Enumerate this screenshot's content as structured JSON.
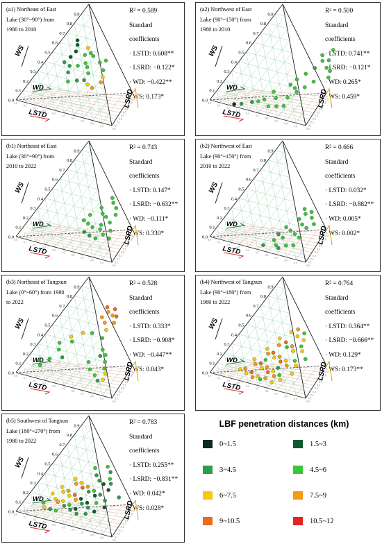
{
  "chart_data": [
    {
      "type": "scatter",
      "panel": "a1",
      "title": "(a1) Northeast of East\nLake (30°~90°) from\n1980 to 2010",
      "axes": [
        "LSTD",
        "LSRD",
        "WD",
        "WS"
      ],
      "tick_labels": [
        "0.0",
        "0.1",
        "0.2",
        "0.3",
        "0.4",
        "0.5",
        "0.6",
        "0.7",
        "0.8",
        "0.9"
      ],
      "r2": "R² = 0.589",
      "coef_heading": "Standard\ncoefficients",
      "coefficients": [
        "· LSTD: 0.608**",
        "· LSRD: −0.122*",
        "· WD: −0.422**",
        "· WS: 0.173*"
      ],
      "points": [
        [
          0.14,
          0.66,
          1
        ],
        [
          0.17,
          0.62,
          1
        ],
        [
          0.2,
          0.56,
          1
        ],
        [
          0.19,
          0.5,
          1
        ],
        [
          0.17,
          0.44,
          2
        ],
        [
          0.24,
          0.42,
          2
        ],
        [
          0.28,
          0.62,
          4
        ],
        [
          0.3,
          0.55,
          3
        ],
        [
          0.34,
          0.58,
          3
        ],
        [
          0.38,
          0.56,
          3
        ],
        [
          0.36,
          0.48,
          3
        ],
        [
          0.31,
          0.44,
          3
        ],
        [
          0.27,
          0.36,
          2
        ],
        [
          0.4,
          0.45,
          3
        ],
        [
          0.45,
          0.4,
          3
        ],
        [
          0.48,
          0.52,
          3
        ],
        [
          0.52,
          0.55,
          3
        ],
        [
          0.56,
          0.46,
          3
        ],
        [
          0.6,
          0.4,
          4
        ],
        [
          0.62,
          0.35,
          5
        ],
        [
          0.46,
          0.33,
          2
        ],
        [
          0.4,
          0.31,
          2
        ],
        [
          0.33,
          0.28,
          3
        ],
        [
          0.52,
          0.3,
          4
        ],
        [
          0.58,
          0.28,
          5
        ]
      ]
    },
    {
      "type": "scatter",
      "panel": "a2",
      "title": "(a2) Northwest of East\nLake (90°~150°) from\n1980 to 2010",
      "axes": [
        "LSTD",
        "LSRD",
        "WD",
        "WS"
      ],
      "tick_labels": [
        "0.0",
        "0.1",
        "0.2",
        "0.3",
        "0.4",
        "0.5",
        "0.6",
        "0.7",
        "0.8",
        "0.9"
      ],
      "r2": "R² = 0.500",
      "coef_heading": "Standard\ncoefficients",
      "coefficients": [
        "· LSTD: 0.741**",
        "· LSRD: −0.121*",
        "· WD: 0.265*",
        "· WS: 0.459*"
      ],
      "points": [
        [
          0.74,
          0.72,
          3
        ],
        [
          0.68,
          0.65,
          3
        ],
        [
          0.72,
          0.6,
          3
        ],
        [
          0.77,
          0.62,
          3
        ],
        [
          0.8,
          0.55,
          3
        ],
        [
          0.7,
          0.52,
          2
        ],
        [
          0.85,
          0.53,
          3
        ],
        [
          0.88,
          0.47,
          3
        ],
        [
          0.66,
          0.45,
          3
        ],
        [
          0.62,
          0.38,
          3
        ],
        [
          0.6,
          0.32,
          3
        ],
        [
          0.66,
          0.3,
          3
        ],
        [
          0.7,
          0.27,
          3
        ],
        [
          0.74,
          0.33,
          3
        ],
        [
          0.5,
          0.22,
          3
        ],
        [
          0.56,
          0.17,
          3
        ],
        [
          0.47,
          0.13,
          3
        ],
        [
          0.43,
          0.1,
          3
        ],
        [
          0.38,
          0.08,
          2
        ],
        [
          0.55,
          0.08,
          3
        ],
        [
          0.62,
          0.1,
          3
        ],
        [
          0.68,
          0.12,
          3
        ],
        [
          0.3,
          0.04,
          2
        ],
        [
          0.24,
          0.02,
          0
        ],
        [
          0.66,
          0.2,
          3
        ],
        [
          0.78,
          0.4,
          3
        ]
      ]
    },
    {
      "type": "scatter",
      "panel": "b1",
      "title": "(b1) Northeast of East\nLake (30°~90°) from\n2010 to 2022",
      "axes": [
        "LSTD",
        "LSRD",
        "WD",
        "WS"
      ],
      "tick_labels": [
        "0.0",
        "0.1",
        "0.2",
        "0.3",
        "0.4",
        "0.5",
        "0.6",
        "0.7",
        "0.8",
        "0.9"
      ],
      "r2": "R² = 0.743",
      "coef_heading": "Standard\ncoefficients",
      "coefficients": [
        "· LSTD: 0.147*",
        "· LSRD: −0.632**",
        "· WD: −0.111*",
        "· WS: 0.330*"
      ],
      "points": [
        [
          0.58,
          0.56,
          3
        ],
        [
          0.62,
          0.52,
          3
        ],
        [
          0.68,
          0.48,
          3
        ],
        [
          0.55,
          0.45,
          3
        ],
        [
          0.6,
          0.4,
          3
        ],
        [
          0.65,
          0.38,
          3
        ],
        [
          0.72,
          0.34,
          3
        ],
        [
          0.5,
          0.36,
          3
        ],
        [
          0.48,
          0.3,
          3
        ],
        [
          0.54,
          0.28,
          3
        ],
        [
          0.6,
          0.26,
          3
        ],
        [
          0.68,
          0.26,
          3
        ],
        [
          0.74,
          0.22,
          3
        ],
        [
          0.78,
          0.27,
          3
        ],
        [
          0.56,
          0.2,
          2
        ],
        [
          0.63,
          0.18,
          2
        ],
        [
          0.7,
          0.17,
          3
        ],
        [
          0.82,
          0.2,
          3
        ],
        [
          0.72,
          0.42,
          3
        ],
        [
          0.66,
          0.3,
          3
        ]
      ]
    },
    {
      "type": "scatter",
      "panel": "b2",
      "title": "(b2) Northwest of East\nLake (90°~150°) from\n2010 to 2022",
      "axes": [
        "LSTD",
        "LSRD",
        "WD",
        "WS"
      ],
      "tick_labels": [
        "0.0",
        "0.1",
        "0.2",
        "0.3",
        "0.4",
        "0.5",
        "0.6",
        "0.7",
        "0.8",
        "0.9"
      ],
      "r2": "R² = 0.666",
      "coef_heading": "Standard\ncoefficients",
      "coefficients": [
        "· LSTD: 0.032*",
        "· LSRD: −0.882**",
        "· WD: 0.005*",
        "· WS: 0.002*"
      ],
      "points": [
        [
          0.64,
          0.46,
          3
        ],
        [
          0.68,
          0.42,
          3
        ],
        [
          0.72,
          0.45,
          3
        ],
        [
          0.76,
          0.4,
          3
        ],
        [
          0.66,
          0.36,
          3
        ],
        [
          0.72,
          0.32,
          3
        ],
        [
          0.78,
          0.3,
          3
        ],
        [
          0.82,
          0.35,
          3
        ],
        [
          0.6,
          0.26,
          3
        ],
        [
          0.66,
          0.24,
          3
        ],
        [
          0.72,
          0.22,
          3
        ],
        [
          0.78,
          0.2,
          3
        ],
        [
          0.58,
          0.18,
          2
        ],
        [
          0.64,
          0.16,
          3
        ],
        [
          0.58,
          0.12,
          3
        ],
        [
          0.63,
          0.08,
          3
        ],
        [
          0.67,
          0.06,
          2
        ],
        [
          0.72,
          0.1,
          3
        ],
        [
          0.52,
          0.05,
          2
        ],
        [
          0.78,
          0.12,
          3
        ]
      ]
    },
    {
      "type": "scatter",
      "panel": "b3",
      "title": "(b3) Northeast of Tangxun\nLake (0°~60°) from 1980\nto 2022",
      "axes": [
        "LSTD",
        "LSRD",
        "WD",
        "WS"
      ],
      "tick_labels": [
        "0.0",
        "0.1",
        "0.2",
        "0.3",
        "0.4",
        "0.5",
        "0.6",
        "0.7",
        "0.8",
        "0.9"
      ],
      "r2": "R² = 0.528",
      "coef_heading": "Standard\ncoefficients",
      "coefficients": [
        "· LSTD: 0.333*",
        "· LSRD: −0.908*",
        "· WD: −0.447**",
        "· WS: 0.043*"
      ],
      "points": [
        [
          0.36,
          0.78,
          6
        ],
        [
          0.4,
          0.74,
          5
        ],
        [
          0.44,
          0.78,
          6
        ],
        [
          0.46,
          0.72,
          5
        ],
        [
          0.5,
          0.72,
          6
        ],
        [
          0.38,
          0.68,
          5
        ],
        [
          0.44,
          0.64,
          5
        ],
        [
          0.52,
          0.66,
          5
        ],
        [
          0.5,
          0.58,
          4
        ],
        [
          0.32,
          0.5,
          4
        ],
        [
          0.4,
          0.52,
          3
        ],
        [
          0.24,
          0.44,
          4
        ],
        [
          0.28,
          0.4,
          3
        ],
        [
          0.18,
          0.36,
          3
        ],
        [
          0.22,
          0.3,
          3
        ],
        [
          0.2,
          0.2,
          3
        ],
        [
          0.12,
          0.16,
          2
        ],
        [
          0.16,
          0.12,
          3
        ],
        [
          0.6,
          0.4,
          3
        ],
        [
          0.66,
          0.36,
          3
        ],
        [
          0.7,
          0.3,
          3
        ],
        [
          0.74,
          0.24,
          3
        ],
        [
          0.78,
          0.2,
          4
        ],
        [
          0.8,
          0.14,
          4
        ],
        [
          0.56,
          0.26,
          3
        ],
        [
          0.62,
          0.2,
          3
        ],
        [
          0.7,
          0.16,
          3
        ],
        [
          0.76,
          0.12,
          2
        ],
        [
          0.3,
          0.24,
          2
        ],
        [
          0.52,
          0.5,
          3
        ],
        [
          0.62,
          0.34,
          2
        ]
      ]
    },
    {
      "type": "scatter",
      "panel": "b4",
      "title": "(b4) Northwest of Tangxun\nLake (90°~180°) from\n1980 to 2022",
      "axes": [
        "LSTD",
        "LSRD",
        "WD",
        "WS"
      ],
      "tick_labels": [
        "0.0",
        "0.1",
        "0.2",
        "0.3",
        "0.4",
        "0.5",
        "0.6",
        "0.7",
        "0.8",
        "0.9"
      ],
      "r2": "R² = 0.764",
      "coef_heading": "Standard\ncoefficients",
      "coefficients": [
        "· LSTD: 0.364**",
        "· LSRD: −0.666**",
        "· WD: 0.129*",
        "· WS: 0.173**"
      ],
      "points": [
        [
          0.44,
          0.54,
          4
        ],
        [
          0.48,
          0.58,
          5
        ],
        [
          0.52,
          0.52,
          4
        ],
        [
          0.56,
          0.56,
          3
        ],
        [
          0.6,
          0.5,
          4
        ],
        [
          0.38,
          0.46,
          4
        ],
        [
          0.42,
          0.4,
          5
        ],
        [
          0.46,
          0.44,
          6
        ],
        [
          0.5,
          0.4,
          3
        ],
        [
          0.54,
          0.42,
          5
        ],
        [
          0.58,
          0.38,
          4
        ],
        [
          0.62,
          0.44,
          3
        ],
        [
          0.66,
          0.4,
          4
        ],
        [
          0.34,
          0.34,
          4
        ],
        [
          0.38,
          0.3,
          5
        ],
        [
          0.42,
          0.32,
          6
        ],
        [
          0.46,
          0.28,
          4
        ],
        [
          0.5,
          0.3,
          5
        ],
        [
          0.54,
          0.26,
          6
        ],
        [
          0.58,
          0.28,
          4
        ],
        [
          0.62,
          0.24,
          5
        ],
        [
          0.66,
          0.3,
          3
        ],
        [
          0.7,
          0.26,
          4
        ],
        [
          0.3,
          0.22,
          4
        ],
        [
          0.34,
          0.18,
          5
        ],
        [
          0.38,
          0.2,
          6
        ],
        [
          0.42,
          0.16,
          4
        ],
        [
          0.46,
          0.18,
          5
        ],
        [
          0.5,
          0.14,
          6
        ],
        [
          0.54,
          0.16,
          4
        ],
        [
          0.58,
          0.12,
          5
        ],
        [
          0.62,
          0.14,
          3
        ],
        [
          0.66,
          0.1,
          4
        ],
        [
          0.28,
          0.12,
          5
        ],
        [
          0.32,
          0.08,
          4
        ],
        [
          0.36,
          0.1,
          6
        ],
        [
          0.4,
          0.06,
          5
        ],
        [
          0.44,
          0.08,
          4
        ],
        [
          0.48,
          0.06,
          3
        ],
        [
          0.52,
          0.08,
          5
        ],
        [
          0.72,
          0.18,
          4
        ],
        [
          0.74,
          0.34,
          3
        ],
        [
          0.56,
          0.2,
          2
        ],
        [
          0.4,
          0.24,
          3
        ],
        [
          0.24,
          0.1,
          4
        ],
        [
          0.6,
          0.06,
          4
        ]
      ]
    },
    {
      "type": "scatter",
      "panel": "b5",
      "title": "(b5) Southwest of Tangxun\nLake (180°~270°) from\n1980 to 2022",
      "axes": [
        "LSTD",
        "LSRD",
        "WD",
        "WS"
      ],
      "tick_labels": [
        "0.0",
        "0.1",
        "0.2",
        "0.3",
        "0.4",
        "0.5",
        "0.6",
        "0.7",
        "0.8",
        "0.9"
      ],
      "r2": "R² = 0.783",
      "coef_heading": "Standard\ncoefficients",
      "coefficients": [
        "· LSTD: 0.255**",
        "· LSRD: −0.831**",
        "· WD: 0.042*",
        "· WS: 0.028*"
      ],
      "points": [
        [
          0.4,
          0.56,
          3
        ],
        [
          0.5,
          0.6,
          3
        ],
        [
          0.56,
          0.56,
          2
        ],
        [
          0.6,
          0.5,
          3
        ],
        [
          0.46,
          0.5,
          2
        ],
        [
          0.52,
          0.46,
          2
        ],
        [
          0.58,
          0.44,
          1
        ],
        [
          0.64,
          0.46,
          2
        ],
        [
          0.66,
          0.4,
          1
        ],
        [
          0.3,
          0.42,
          4
        ],
        [
          0.34,
          0.38,
          5
        ],
        [
          0.38,
          0.4,
          4
        ],
        [
          0.42,
          0.36,
          6
        ],
        [
          0.46,
          0.38,
          5
        ],
        [
          0.5,
          0.34,
          2
        ],
        [
          0.54,
          0.36,
          3
        ],
        [
          0.58,
          0.32,
          1
        ],
        [
          0.62,
          0.34,
          2
        ],
        [
          0.24,
          0.32,
          4
        ],
        [
          0.28,
          0.28,
          4
        ],
        [
          0.32,
          0.3,
          5
        ],
        [
          0.36,
          0.26,
          4
        ],
        [
          0.4,
          0.28,
          6
        ],
        [
          0.44,
          0.24,
          5
        ],
        [
          0.48,
          0.26,
          1
        ],
        [
          0.52,
          0.22,
          2
        ],
        [
          0.56,
          0.24,
          1
        ],
        [
          0.6,
          0.2,
          2
        ],
        [
          0.64,
          0.26,
          3
        ],
        [
          0.2,
          0.24,
          4
        ],
        [
          0.26,
          0.2,
          4
        ],
        [
          0.3,
          0.18,
          5
        ],
        [
          0.34,
          0.2,
          4
        ],
        [
          0.38,
          0.16,
          2
        ],
        [
          0.42,
          0.18,
          3
        ],
        [
          0.46,
          0.14,
          2
        ],
        [
          0.5,
          0.16,
          1
        ],
        [
          0.54,
          0.12,
          2
        ],
        [
          0.18,
          0.14,
          3
        ],
        [
          0.22,
          0.1,
          4
        ],
        [
          0.28,
          0.1,
          2
        ],
        [
          0.34,
          0.1,
          3
        ],
        [
          0.7,
          0.3,
          2
        ],
        [
          0.74,
          0.24,
          1
        ],
        [
          0.8,
          0.36,
          2
        ],
        [
          0.62,
          0.14,
          2
        ],
        [
          0.68,
          0.18,
          1
        ]
      ]
    }
  ],
  "legend": {
    "title": "LBF penetration distances (km)",
    "classes": [
      {
        "label": "0~1.5",
        "color": "#0b2a22"
      },
      {
        "label": "1.5~3",
        "color": "#0e5a2e"
      },
      {
        "label": "3~4.5",
        "color": "#2e9b4e"
      },
      {
        "label": "4.5~6",
        "color": "#3cc43c"
      },
      {
        "label": "6~7.5",
        "color": "#f2cc0c"
      },
      {
        "label": "7.5~9",
        "color": "#f39a16"
      },
      {
        "label": "9~10.5",
        "color": "#ec6b1c"
      },
      {
        "label": "10.5~12",
        "color": "#e02424"
      }
    ]
  }
}
